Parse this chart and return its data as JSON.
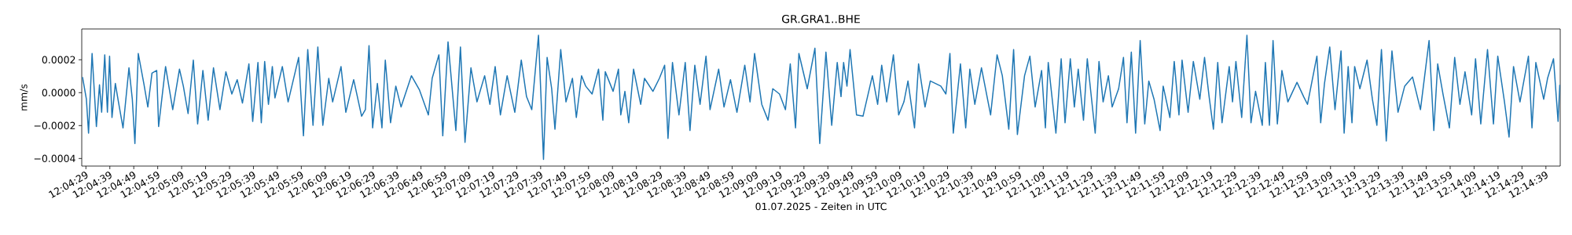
{
  "chart_data": {
    "type": "line",
    "title": "GR.GRA1..BHE",
    "xlabel": "01.07.2025 - Zeiten in UTC",
    "ylabel": "mm/s",
    "x": [
      12.07433,
      12.07478,
      12.07503,
      12.07544,
      12.07594,
      12.0763,
      12.07655,
      12.07691,
      12.07722,
      12.07747,
      12.07775,
      12.07814,
      12.0785,
      12.07903,
      12.07972,
      12.08011,
      12.08041,
      12.0808,
      12.08147,
      12.08191,
      12.08239,
      12.08294,
      12.08316,
      12.08397,
      12.0848,
      12.08558,
      12.08603,
      12.08658,
      12.08719,
      12.08769,
      12.0883,
      12.08891,
      12.08953,
      12.09028,
      12.09097,
      12.09166,
      12.09228,
      12.09289,
      12.09364,
      12.09408,
      12.09469,
      12.09508,
      12.09547,
      12.09591,
      12.09636,
      12.09666,
      12.09752,
      12.09819,
      12.09941,
      12.09997,
      12.10047,
      12.10108,
      12.10164,
      12.10222,
      12.10291,
      12.10336,
      12.10433,
      12.10489,
      12.1058,
      12.10672,
      12.10716,
      12.10758,
      12.108,
      12.10855,
      12.10908,
      12.10947,
      12.11008,
      12.11069,
      12.1113,
      12.1125,
      12.11344,
      12.11447,
      12.11491,
      12.11569,
      12.11614,
      12.11675,
      12.11766,
      12.11819,
      12.11872,
      12.11941,
      12.12011,
      12.121,
      12.12161,
      12.12222,
      12.12283,
      12.12361,
      12.1245,
      12.12525,
      12.12586,
      12.12647,
      12.12725,
      12.12783,
      12.12825,
      12.12878,
      12.12916,
      12.12983,
      12.13044,
      12.13119,
      12.13164,
      12.13225,
      12.13272,
      12.13347,
      12.13422,
      12.13472,
      12.135,
      12.13591,
      12.13653,
      12.1368,
      12.13728,
      12.13772,
      12.13828,
      12.13911,
      12.13955,
      12.14053,
      12.14128,
      12.14189,
      12.14228,
      12.1428,
      12.14355,
      12.14428,
      12.14483,
      12.14539,
      12.146,
      12.14669,
      12.14716,
      12.14816,
      12.14878,
      12.14953,
      12.15028,
      12.15119,
      12.1518,
      12.15233,
      12.15316,
      12.15389,
      12.15444,
      12.15522,
      12.15591,
      12.15647,
      12.15708,
      12.15747,
      12.15844,
      12.15933,
      12.15989,
      12.16061,
      12.16128,
      12.16192,
      12.16236,
      12.16266,
      12.16305,
      12.16341,
      12.16416,
      12.16491,
      12.166,
      12.16661,
      12.16708,
      12.16766,
      12.16844,
      12.16905,
      12.16966,
      12.17013,
      12.17089,
      12.17136,
      12.17211,
      12.17272,
      12.17394,
      12.17453,
      12.175,
      12.17539,
      12.17622,
      12.17683,
      12.17731,
      12.17789,
      12.17866,
      12.17972,
      12.18047,
      12.18108,
      12.18183,
      12.18239,
      12.18283,
      12.18366,
      12.18428,
      12.18489,
      12.18564,
      12.18608,
      12.18641,
      12.1873,
      12.18791,
      12.18836,
      12.18897,
      12.18944,
      12.18989,
      12.1905,
      12.19094,
      12.19186,
      12.1923,
      12.19278,
      12.19339,
      12.19383,
      12.19458,
      12.19514,
      12.19555,
      12.19605,
      12.19655,
      12.19708,
      12.19761,
      12.19808,
      12.19869,
      12.19939,
      12.19975,
      12.20053,
      12.20103,
      12.20158,
      12.20194,
      12.20264,
      12.20325,
      12.204,
      12.20455,
      12.20508,
      12.20558,
      12.20608,
      12.20658,
      12.20741,
      12.2078,
      12.20819,
      12.20886,
      12.20947,
      12.20994,
      12.21047,
      12.21125,
      12.21161,
      12.21208,
      12.2125,
      12.213,
      12.21353,
      12.21422,
      12.21528,
      12.21605,
      12.2165,
      12.21759,
      12.21803,
      12.21847,
      12.21908,
      12.21969,
      12.22039,
      12.22075,
      12.22122,
      12.22166,
      12.22197,
      12.22258,
      12.22341,
      12.22403,
      12.22455,
      12.22508,
      12.22564,
      12.2263,
      12.227,
      12.22778,
      12.22869,
      12.22961,
      12.23061,
      12.23116,
      12.23161,
      12.23222,
      12.23297,
      12.23358,
      12.23419,
      12.23478,
      12.23555,
      12.236,
      12.23661,
      12.23739,
      12.23808,
      12.23858,
      12.23936,
      12.23989,
      12.24041,
      12.24116,
      12.24214,
      12.24255,
      12.243,
      12.24391,
      12.24436,
      12.24505,
      12.24558,
      12.24578
    ],
    "series": [
      {
        "color": "#1f77b4",
        "values": [
          9.5e-05,
          -4e-05,
          -0.000246,
          0.000238,
          -0.000206,
          4.8e-05,
          -0.000119,
          0.00023,
          -0.000119,
          0.000222,
          -0.000151,
          5.6e-05,
          -5.6e-05,
          -0.000214,
          0.000151,
          -4e-05,
          -0.000309,
          0.000238,
          4.8e-05,
          -8.7e-05,
          0.000119,
          0.000135,
          -0.000206,
          0.000159,
          -0.000103,
          0.000143,
          4e-05,
          -0.000127,
          0.000198,
          -0.00019,
          0.000135,
          -0.000167,
          0.000151,
          -0.000103,
          0.000127,
          -8e-06,
          7.9e-05,
          -6.3e-05,
          0.000175,
          -0.000175,
          0.000183,
          -0.000183,
          0.00019,
          -7.1e-05,
          0.000159,
          -3.2e-05,
          0.000159,
          -5.6e-05,
          0.000214,
          -0.000262,
          0.000262,
          -0.000198,
          0.000278,
          -0.000198,
          8.7e-05,
          -5.6e-05,
          0.000159,
          -0.000119,
          7.9e-05,
          -0.000143,
          -0.000103,
          0.000286,
          -0.000214,
          5.6e-05,
          -0.000214,
          0.000198,
          -0.000183,
          4e-05,
          -8.7e-05,
          0.000103,
          1.6e-05,
          -0.000135,
          8.7e-05,
          0.00023,
          -0.000262,
          0.000309,
          -0.00023,
          0.000278,
          -0.000302,
          0.000151,
          -5.6e-05,
          0.000103,
          -7.1e-05,
          0.000159,
          -0.000135,
          0.000103,
          -0.000119,
          0.000198,
          -2.4e-05,
          -0.000103,
          0.000349,
          -0.000405,
          0.000214,
          2.4e-05,
          -0.000222,
          0.000262,
          -5.6e-05,
          8.7e-05,
          -0.000151,
          0.000103,
          4e-05,
          -8e-06,
          0.000143,
          -0.000167,
          0.000127,
          8e-06,
          0.000143,
          -0.000135,
          8e-06,
          -0.000183,
          0.000143,
          -7.1e-05,
          8.7e-05,
          8e-06,
          8.7e-05,
          0.000167,
          -0.000278,
          0.000183,
          -0.000135,
          0.000183,
          -0.00023,
          0.000167,
          -7.1e-05,
          0.000222,
          -0.000103,
          0.000143,
          -8.7e-05,
          7.9e-05,
          -0.000119,
          0.000167,
          -5.6e-05,
          0.000238,
          -7.1e-05,
          -0.000167,
          2.4e-05,
          -8e-06,
          -0.000103,
          0.000175,
          -0.000214,
          0.000238,
          2.4e-05,
          0.00027,
          -0.000309,
          0.000246,
          -0.000198,
          0.000183,
          -2.4e-05,
          0.000183,
          4e-05,
          0.000262,
          -0.000135,
          -0.000143,
          0.000103,
          -7.1e-05,
          0.000167,
          -5.6e-05,
          0.00023,
          -0.000135,
          -5.6e-05,
          7.1e-05,
          -0.000214,
          0.000175,
          -8.7e-05,
          7.1e-05,
          4e-05,
          -8e-06,
          0.000238,
          -0.000246,
          0.000175,
          -0.000214,
          0.000143,
          -7.1e-05,
          0.000151,
          -0.000135,
          0.00023,
          0.000103,
          -0.000222,
          0.000262,
          -0.000254,
          0.000103,
          0.000222,
          -8.7e-05,
          0.000135,
          -0.000214,
          0.000183,
          -0.000246,
          0.000206,
          -0.000183,
          0.000206,
          -8.7e-05,
          0.000143,
          -0.000167,
          0.000206,
          -0.000246,
          0.00019,
          -5.6e-05,
          0.000103,
          -8.7e-05,
          2.4e-05,
          0.000214,
          -0.000183,
          0.000246,
          -0.000246,
          0.000317,
          -0.00019,
          7.1e-05,
          -4e-05,
          -0.00023,
          4e-05,
          -0.000151,
          0.00019,
          -0.000135,
          0.000198,
          -0.000119,
          0.00019,
          -4e-05,
          0.000214,
          -2.4e-05,
          -0.000222,
          0.000183,
          -0.000183,
          0.000159,
          -5.6e-05,
          0.00019,
          -0.000151,
          0.000349,
          -0.000183,
          8e-06,
          -0.000198,
          0.000183,
          -0.000198,
          0.000317,
          -0.00019,
          0.000135,
          -5.6e-05,
          6.3e-05,
          -2.4e-05,
          -7.1e-05,
          0.000222,
          -0.000183,
          5.6e-05,
          0.000278,
          -0.000103,
          0.000254,
          -0.000246,
          0.000159,
          -0.000183,
          0.000159,
          2.4e-05,
          0.000198,
          -4e-05,
          -0.000198,
          0.000262,
          -0.000294,
          0.000254,
          -0.000119,
          4e-05,
          9.5e-05,
          -0.000103,
          0.000317,
          -0.00023,
          0.000175,
          -8e-06,
          -0.000214,
          0.000214,
          -7.1e-05,
          0.000127,
          -0.000135,
          0.000206,
          -0.00019,
          0.000262,
          -0.00019,
          0.000222,
          -5.6e-05,
          -0.00027,
          0.000159,
          -5.6e-05,
          0.000222,
          -0.000214,
          0.000183,
          -4e-05,
          8.7e-05,
          0.000206,
          -0.000175,
          4.8e-05
        ]
      }
    ],
    "xlim": [
      12.07424,
      12.24583
    ],
    "ylim": [
      -0.000446,
      0.000387
    ],
    "xticks": [
      {
        "value": 12.074722,
        "label": "12:04:29"
      },
      {
        "value": 12.0775,
        "label": "12:04:39"
      },
      {
        "value": 12.080278,
        "label": "12:04:49"
      },
      {
        "value": 12.083056,
        "label": "12:04:59"
      },
      {
        "value": 12.085833,
        "label": "12:05:09"
      },
      {
        "value": 12.088611,
        "label": "12:05:19"
      },
      {
        "value": 12.091389,
        "label": "12:05:29"
      },
      {
        "value": 12.094167,
        "label": "12:05:39"
      },
      {
        "value": 12.096944,
        "label": "12:05:49"
      },
      {
        "value": 12.099722,
        "label": "12:05:59"
      },
      {
        "value": 12.1025,
        "label": "12:06:09"
      },
      {
        "value": 12.105278,
        "label": "12:06:19"
      },
      {
        "value": 12.108056,
        "label": "12:06:29"
      },
      {
        "value": 12.110833,
        "label": "12:06:39"
      },
      {
        "value": 12.113611,
        "label": "12:06:49"
      },
      {
        "value": 12.116389,
        "label": "12:06:59"
      },
      {
        "value": 12.119167,
        "label": "12:07:09"
      },
      {
        "value": 12.121944,
        "label": "12:07:19"
      },
      {
        "value": 12.124722,
        "label": "12:07:29"
      },
      {
        "value": 12.1275,
        "label": "12:07:39"
      },
      {
        "value": 12.130278,
        "label": "12:07:49"
      },
      {
        "value": 12.133056,
        "label": "12:07:59"
      },
      {
        "value": 12.135833,
        "label": "12:08:09"
      },
      {
        "value": 12.138611,
        "label": "12:08:19"
      },
      {
        "value": 12.141389,
        "label": "12:08:29"
      },
      {
        "value": 12.144167,
        "label": "12:08:39"
      },
      {
        "value": 12.146944,
        "label": "12:08:49"
      },
      {
        "value": 12.149722,
        "label": "12:08:59"
      },
      {
        "value": 12.1525,
        "label": "12:09:09"
      },
      {
        "value": 12.155278,
        "label": "12:09:19"
      },
      {
        "value": 12.158056,
        "label": "12:09:29"
      },
      {
        "value": 12.160833,
        "label": "12:09:39"
      },
      {
        "value": 12.163611,
        "label": "12:09:49"
      },
      {
        "value": 12.166389,
        "label": "12:09:59"
      },
      {
        "value": 12.169167,
        "label": "12:10:09"
      },
      {
        "value": 12.171944,
        "label": "12:10:19"
      },
      {
        "value": 12.174722,
        "label": "12:10:29"
      },
      {
        "value": 12.1775,
        "label": "12:10:39"
      },
      {
        "value": 12.180278,
        "label": "12:10:49"
      },
      {
        "value": 12.183056,
        "label": "12:10:59"
      },
      {
        "value": 12.185833,
        "label": "12:11:09"
      },
      {
        "value": 12.188611,
        "label": "12:11:19"
      },
      {
        "value": 12.191389,
        "label": "12:11:29"
      },
      {
        "value": 12.194167,
        "label": "12:11:39"
      },
      {
        "value": 12.196944,
        "label": "12:11:49"
      },
      {
        "value": 12.199722,
        "label": "12:11:59"
      },
      {
        "value": 12.2025,
        "label": "12:12:09"
      },
      {
        "value": 12.205278,
        "label": "12:12:19"
      },
      {
        "value": 12.208056,
        "label": "12:12:29"
      },
      {
        "value": 12.210833,
        "label": "12:12:39"
      },
      {
        "value": 12.213611,
        "label": "12:12:49"
      },
      {
        "value": 12.216389,
        "label": "12:12:59"
      },
      {
        "value": 12.219167,
        "label": "12:13:09"
      },
      {
        "value": 12.221944,
        "label": "12:13:19"
      },
      {
        "value": 12.224722,
        "label": "12:13:29"
      },
      {
        "value": 12.2275,
        "label": "12:13:39"
      },
      {
        "value": 12.230278,
        "label": "12:13:49"
      },
      {
        "value": 12.233056,
        "label": "12:13:59"
      },
      {
        "value": 12.235833,
        "label": "12:14:09"
      },
      {
        "value": 12.238611,
        "label": "12:14:19"
      },
      {
        "value": 12.241389,
        "label": "12:14:29"
      },
      {
        "value": 12.244167,
        "label": "12:14:39"
      }
    ],
    "yticks": [
      {
        "value": -0.0004,
        "label": "−0.0004"
      },
      {
        "value": -0.0002,
        "label": "−0.0002"
      },
      {
        "value": 0,
        "label": "0.0000"
      },
      {
        "value": 0.0002,
        "label": "0.0002"
      }
    ]
  }
}
